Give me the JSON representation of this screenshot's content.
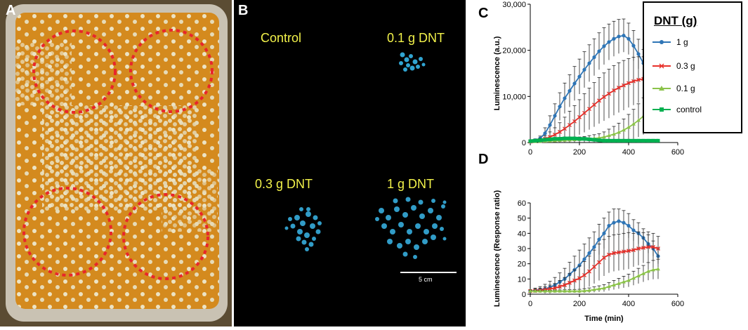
{
  "panels": {
    "A": {
      "letter": "A"
    },
    "B": {
      "letter": "B",
      "labels": [
        "Control",
        "0.1 g DNT",
        "0.3 g DNT",
        "1 g DNT"
      ],
      "scale_bar_label": "5 cm"
    },
    "C": {
      "letter": "C"
    },
    "D": {
      "letter": "D"
    }
  },
  "colors": {
    "series_1g": "#2e75b6",
    "series_03g": "#e8302a",
    "series_01g": "#8bc34a",
    "series_control": "#00b050",
    "highlight_circles": "#e8262b",
    "panel_b_text": "#f2f24a"
  },
  "legend": {
    "title": "DNT (g)",
    "entries": [
      "1 g",
      "0.3 g",
      "0.1 g",
      "control"
    ]
  },
  "chart_data": [
    {
      "id": "C",
      "type": "line",
      "ylabel": "Luminescence (a.u.)",
      "xlabel": "",
      "xlim": [
        0,
        600
      ],
      "ylim": [
        0,
        30000
      ],
      "xticks": [
        "0",
        "200",
        "400",
        "600"
      ],
      "yticks": [
        "0",
        "10,000",
        "20,000",
        "30,000"
      ],
      "error_bars": true,
      "series": [
        {
          "name": "1 g",
          "x": [
            0,
            20,
            40,
            60,
            80,
            100,
            120,
            140,
            160,
            180,
            200,
            220,
            240,
            260,
            280,
            300,
            320,
            340,
            360,
            380,
            400,
            420,
            440,
            460,
            480,
            500,
            520
          ],
          "y": [
            300,
            500,
            900,
            2000,
            3800,
            5800,
            7800,
            9600,
            11200,
            12800,
            14300,
            15800,
            17200,
            18500,
            19800,
            20900,
            21800,
            22500,
            23000,
            23200,
            22500,
            21000,
            19200,
            17200,
            15300,
            14000,
            12500
          ],
          "err": [
            200,
            300,
            500,
            1200,
            2000,
            2600,
            3000,
            3300,
            3500,
            3700,
            3800,
            3900,
            4000,
            4000,
            4000,
            4000,
            3900,
            3800,
            3700,
            3600,
            3400,
            3300,
            3200,
            3000,
            2800,
            2500,
            2200
          ]
        },
        {
          "name": "0.3 g",
          "x": [
            0,
            20,
            40,
            60,
            80,
            100,
            120,
            140,
            160,
            180,
            200,
            220,
            240,
            260,
            280,
            300,
            320,
            340,
            360,
            380,
            400,
            420,
            440,
            460,
            480,
            500,
            520
          ],
          "y": [
            200,
            300,
            500,
            800,
            1200,
            1700,
            2300,
            3000,
            3800,
            4600,
            5500,
            6400,
            7300,
            8200,
            9100,
            9900,
            10600,
            11300,
            11900,
            12400,
            12900,
            13300,
            13600,
            13800,
            13900,
            14000,
            14000
          ],
          "err": [
            150,
            250,
            400,
            700,
            1100,
            1500,
            2000,
            2500,
            3000,
            3400,
            3800,
            4200,
            4500,
            4800,
            5000,
            5200,
            5300,
            5400,
            5400,
            5400,
            5300,
            5200,
            5000,
            4800,
            4500,
            4200,
            3800
          ]
        },
        {
          "name": "0.1 g",
          "x": [
            0,
            20,
            40,
            60,
            80,
            100,
            120,
            140,
            160,
            180,
            200,
            220,
            240,
            260,
            280,
            300,
            320,
            340,
            360,
            380,
            400,
            420,
            440,
            460,
            480,
            500,
            520
          ],
          "y": [
            200,
            200,
            250,
            300,
            350,
            400,
            450,
            500,
            550,
            600,
            650,
            700,
            800,
            900,
            1000,
            1200,
            1500,
            1800,
            2200,
            2700,
            3300,
            4000,
            4800,
            5700,
            6600,
            7400,
            8000
          ],
          "err": [
            100,
            120,
            150,
            200,
            250,
            300,
            350,
            400,
            450,
            500,
            550,
            600,
            700,
            800,
            900,
            1100,
            1400,
            1700,
            2000,
            2400,
            2800,
            3200,
            3600,
            4000,
            4400,
            4700,
            5000
          ]
        },
        {
          "name": "control",
          "x": [
            0,
            20,
            40,
            60,
            80,
            100,
            120,
            140,
            160,
            180,
            200,
            220,
            240,
            260,
            280,
            300,
            320,
            340,
            360,
            380,
            400,
            420,
            440,
            460,
            480,
            500,
            520
          ],
          "y": [
            300,
            400,
            500,
            600,
            700,
            800,
            800,
            900,
            900,
            900,
            800,
            800,
            700,
            600,
            500,
            400,
            400,
            400,
            400,
            400,
            400,
            400,
            400,
            400,
            400,
            400,
            400
          ],
          "err": [
            100,
            150,
            200,
            250,
            300,
            300,
            300,
            300,
            300,
            300,
            300,
            300,
            250,
            200,
            150,
            100,
            100,
            100,
            100,
            100,
            100,
            100,
            100,
            100,
            100,
            100,
            100
          ]
        }
      ]
    },
    {
      "id": "D",
      "type": "line",
      "ylabel": "Luminescence (Response ratio)",
      "xlabel": "Time (min)",
      "xlim": [
        0,
        600
      ],
      "ylim": [
        0,
        60
      ],
      "xticks": [
        "0",
        "200",
        "400",
        "600"
      ],
      "yticks": [
        "0",
        "10",
        "20",
        "30",
        "40",
        "50",
        "60"
      ],
      "error_bars": true,
      "series": [
        {
          "name": "1 g",
          "x": [
            0,
            20,
            40,
            60,
            80,
            100,
            120,
            140,
            160,
            180,
            200,
            220,
            240,
            260,
            280,
            300,
            320,
            340,
            360,
            380,
            400,
            420,
            440,
            460,
            480,
            500,
            520
          ],
          "y": [
            2,
            2.5,
            3,
            3.5,
            4.5,
            6,
            8,
            10,
            13,
            16,
            19,
            23,
            27,
            31,
            36,
            40,
            45,
            47,
            48,
            47,
            45,
            42,
            40,
            37,
            33,
            30,
            25
          ],
          "err": [
            1,
            1.5,
            2,
            3,
            4,
            5,
            6,
            7,
            8,
            9,
            10,
            10,
            10,
            10,
            10,
            10,
            9,
            9,
            8,
            8,
            8,
            7,
            7,
            6,
            6,
            5,
            5
          ]
        },
        {
          "name": "0.3 g",
          "x": [
            0,
            20,
            40,
            60,
            80,
            100,
            120,
            140,
            160,
            180,
            200,
            220,
            240,
            260,
            280,
            300,
            320,
            340,
            360,
            380,
            400,
            420,
            440,
            460,
            480,
            500,
            520
          ],
          "y": [
            2,
            2.2,
            2.5,
            3,
            3.5,
            4,
            5,
            6,
            7.5,
            9,
            10.5,
            12.5,
            15,
            18,
            21,
            24,
            26,
            27,
            27.5,
            28,
            28.5,
            29,
            30,
            30.5,
            31,
            31,
            30
          ],
          "err": [
            1,
            1.2,
            1.5,
            2,
            2.5,
            3,
            4,
            5,
            6,
            7,
            8,
            9,
            10,
            11,
            12,
            12,
            12,
            12,
            12,
            12,
            12,
            11,
            11,
            10,
            10,
            9,
            8
          ]
        },
        {
          "name": "0.1 g",
          "x": [
            0,
            20,
            40,
            60,
            80,
            100,
            120,
            140,
            160,
            180,
            200,
            220,
            240,
            260,
            280,
            300,
            320,
            340,
            360,
            380,
            400,
            420,
            440,
            460,
            480,
            500,
            520
          ],
          "y": [
            2,
            2,
            2,
            2,
            2,
            2,
            2,
            2,
            2,
            2,
            2,
            2.2,
            2.5,
            3,
            3.5,
            4,
            5,
            6,
            7,
            8,
            9,
            10.5,
            12,
            13.5,
            15,
            16,
            16.5
          ],
          "err": [
            0.5,
            0.5,
            0.5,
            0.6,
            0.6,
            0.7,
            0.8,
            0.9,
            1,
            1.1,
            1.2,
            1.4,
            1.6,
            1.8,
            2,
            2.3,
            2.6,
            3,
            3.4,
            3.8,
            4.2,
            4.6,
            5,
            5.4,
            5.8,
            6.2,
            6.5
          ]
        }
      ]
    }
  ]
}
